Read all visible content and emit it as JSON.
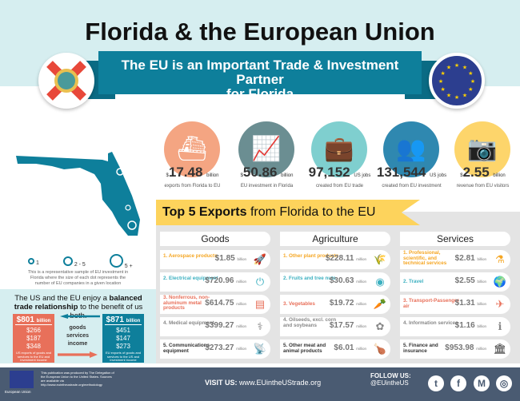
{
  "header": {
    "title": "Florida & the European Union",
    "subtitle_line1": "The EU is an Important Trade & Investment Partner",
    "subtitle_line2": "for Florida"
  },
  "colors": {
    "teal": "#0e7f9b",
    "yellow": "#fdd35c",
    "salmon": "#e8705a",
    "footer": "#4a5b72"
  },
  "stats": [
    {
      "prefix": "$",
      "value": "17.48",
      "unit": "billion",
      "desc": "exports from Florida to EU",
      "color": "#f4a582",
      "icon": "cargo-ship-icon",
      "glyph": "⛴"
    },
    {
      "prefix": "$",
      "value": "50.86",
      "unit": "billion",
      "desc": "EU investment in Florida",
      "color": "#6b8e92",
      "icon": "growth-chart-icon",
      "glyph": "📈"
    },
    {
      "prefix": "",
      "value": "97,152",
      "unit": "US jobs",
      "desc": "created from EU trade",
      "color": "#7fcfcf",
      "icon": "briefcase-icon",
      "glyph": "💼"
    },
    {
      "prefix": "",
      "value": "131,544",
      "unit": "US jobs",
      "desc": "created from EU investment",
      "color": "#2f88b0",
      "icon": "people-icon",
      "glyph": "👥"
    },
    {
      "prefix": "$",
      "value": "2.55",
      "unit": "billion",
      "desc": "revenue from EU visitors",
      "color": "#fdd56b",
      "icon": "camera-icon",
      "glyph": "📷"
    }
  ],
  "map": {
    "legend": [
      "1",
      "2 - 5",
      "5 +"
    ],
    "note": "This is a representative sample of EU investment in Florida where the size of each dot represents the number of EU companies in a given location"
  },
  "top5": {
    "bold": "Top 5 Exports",
    "rest": " from Florida to the EU",
    "columns": [
      {
        "title": "Goods",
        "rows": [
          {
            "label": "1. Aerospace products",
            "value": "$1.85",
            "unit": "billion",
            "icon": "rocket-icon",
            "glyph": "🚀"
          },
          {
            "label": "2. Electrical equipment",
            "value": "$720.96",
            "unit": "million",
            "icon": "plug-icon",
            "glyph": "⏻"
          },
          {
            "label": "3. Nonferrous, non-aluminum metal products",
            "value": "$614.75",
            "unit": "million",
            "icon": "metal-roll-icon",
            "glyph": "▤"
          },
          {
            "label": "4. Medical equipment",
            "value": "$399.27",
            "unit": "million",
            "icon": "stethoscope-icon",
            "glyph": "⚕"
          },
          {
            "label": "5. Communications equipment",
            "value": "$273.27",
            "unit": "million",
            "icon": "antenna-icon",
            "glyph": "📡"
          }
        ]
      },
      {
        "title": "Agriculture",
        "rows": [
          {
            "label": "1. Other plant products",
            "value": "$228.11",
            "unit": "million",
            "icon": "wheat-icon",
            "glyph": "🌾"
          },
          {
            "label": "2. Fruits and tree nuts",
            "value": "$30.63",
            "unit": "million",
            "icon": "fruit-icon",
            "glyph": "◉"
          },
          {
            "label": "3. Vegetables",
            "value": "$19.72",
            "unit": "million",
            "icon": "carrot-icon",
            "glyph": "🥕"
          },
          {
            "label": "4. Oilseeds, excl. corn and soybeans",
            "value": "$17.57",
            "unit": "million",
            "icon": "seeds-icon",
            "glyph": "✿"
          },
          {
            "label": "5. Other meat and animal products",
            "value": "$6.01",
            "unit": "million",
            "icon": "drumstick-icon",
            "glyph": "🍗"
          }
        ]
      },
      {
        "title": "Services",
        "rows": [
          {
            "label": "1. Professional, scientific, and technical services",
            "value": "$2.81",
            "unit": "billion",
            "icon": "flask-icon",
            "glyph": "⚗"
          },
          {
            "label": "2. Travel",
            "value": "$2.55",
            "unit": "billion",
            "icon": "globe-icon",
            "glyph": "🌍"
          },
          {
            "label": "3. Transport-Passenger air",
            "value": "$1.31",
            "unit": "billion",
            "icon": "airplane-icon",
            "glyph": "✈"
          },
          {
            "label": "4. Information services",
            "value": "$1.16",
            "unit": "billion",
            "icon": "info-icon",
            "glyph": "ℹ"
          },
          {
            "label": "5. Finance and insurance",
            "value": "$953.98",
            "unit": "million",
            "icon": "bank-icon",
            "glyph": "🏛"
          }
        ]
      }
    ]
  },
  "trade": {
    "headline_a": "The US and the EU enjoy a ",
    "headline_bold": "balanced trade relationship",
    "headline_b": " to the benefit of us both.",
    "us": {
      "total": "$801",
      "unit": "billion",
      "goods": "$266",
      "services": "$187",
      "income": "$348",
      "note": "US exports of goods and services to the EU and investment income"
    },
    "eu": {
      "total": "$871",
      "unit": "billion",
      "goods": "$451",
      "services": "$147",
      "income": "$273",
      "note": "EU exports of goods and services to the US and investment income"
    },
    "labels": [
      "goods",
      "services",
      "income"
    ]
  },
  "footer": {
    "eu_label": "European Union",
    "credit": "This publication was produced by The Delegation of the European Union to the United States. Sources are available via http://www.euintheustrade.org/methodology",
    "visit_label": "VISIT US:",
    "visit_url": "www.EUintheUStrade.org",
    "follow_label": "FOLLOW US:",
    "handle": "@EUintheUS",
    "social": [
      "twitter-icon",
      "facebook-icon",
      "medium-icon",
      "instagram-icon"
    ]
  }
}
